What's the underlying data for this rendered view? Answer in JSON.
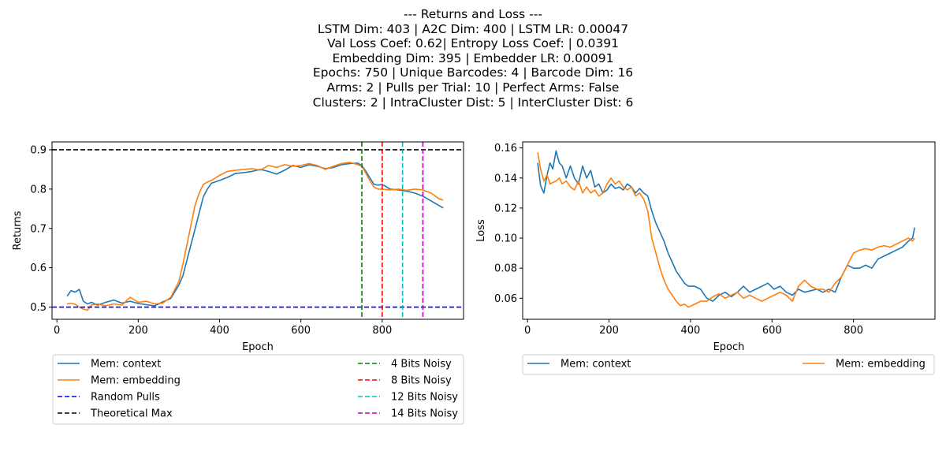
{
  "suptitle_lines": [
    "--- Returns and Loss ---",
    "LSTM Dim: 403 | A2C Dim: 400 | LSTM LR: 0.00047",
    "Val Loss Coef: 0.62| Entropy Loss Coef: | 0.0391",
    "Embedding Dim: 395 | Embedder LR: 0.00091",
    "Epochs: 750 | Unique Barcodes: 4 | Barcode Dim: 16",
    "Arms: 2 | Pulls per Trial: 10 | Perfect Arms: False",
    "Clusters: 2 | IntraCluster Dist: 5 | InterCluster Dist: 6"
  ],
  "chart_data": [
    {
      "type": "line",
      "xlabel": "Epoch",
      "ylabel": "Returns",
      "xlim": [
        -12,
        1000
      ],
      "ylim": [
        0.469,
        0.92
      ],
      "xticks": [
        0,
        200,
        400,
        600,
        800
      ],
      "yticks": [
        0.5,
        0.6,
        0.7,
        0.8,
        0.9
      ],
      "series": [
        {
          "name": "Mem: context",
          "color": "#1f77b4",
          "x": [
            25,
            35,
            45,
            55,
            65,
            75,
            85,
            100,
            120,
            140,
            160,
            180,
            200,
            220,
            240,
            260,
            280,
            300,
            310,
            320,
            330,
            340,
            350,
            360,
            370,
            380,
            400,
            420,
            440,
            460,
            480,
            500,
            520,
            540,
            560,
            580,
            600,
            620,
            640,
            660,
            680,
            700,
            720,
            740,
            750,
            760,
            770,
            780,
            790,
            800,
            820,
            840,
            860,
            880,
            900,
            920,
            940,
            950
          ],
          "y": [
            0.528,
            0.542,
            0.538,
            0.545,
            0.515,
            0.508,
            0.512,
            0.505,
            0.512,
            0.518,
            0.51,
            0.515,
            0.509,
            0.506,
            0.503,
            0.513,
            0.522,
            0.556,
            0.58,
            0.62,
            0.66,
            0.7,
            0.74,
            0.78,
            0.8,
            0.815,
            0.822,
            0.83,
            0.84,
            0.842,
            0.845,
            0.85,
            0.845,
            0.838,
            0.848,
            0.86,
            0.855,
            0.862,
            0.858,
            0.852,
            0.855,
            0.862,
            0.865,
            0.866,
            0.86,
            0.845,
            0.828,
            0.812,
            0.81,
            0.812,
            0.8,
            0.798,
            0.795,
            0.79,
            0.782,
            0.77,
            0.758,
            0.752
          ]
        },
        {
          "name": "Mem: embedding",
          "color": "#ff7f0e",
          "x": [
            25,
            35,
            45,
            55,
            65,
            75,
            85,
            100,
            120,
            140,
            160,
            180,
            200,
            220,
            240,
            260,
            280,
            300,
            310,
            320,
            330,
            340,
            350,
            360,
            370,
            380,
            400,
            420,
            440,
            460,
            480,
            500,
            520,
            540,
            560,
            580,
            600,
            620,
            640,
            660,
            680,
            700,
            720,
            740,
            750,
            760,
            770,
            780,
            790,
            800,
            820,
            840,
            860,
            880,
            900,
            920,
            940,
            950
          ],
          "y": [
            0.508,
            0.51,
            0.507,
            0.5,
            0.495,
            0.492,
            0.505,
            0.508,
            0.503,
            0.508,
            0.505,
            0.525,
            0.512,
            0.515,
            0.508,
            0.51,
            0.525,
            0.565,
            0.61,
            0.66,
            0.71,
            0.76,
            0.79,
            0.812,
            0.818,
            0.822,
            0.835,
            0.845,
            0.848,
            0.85,
            0.852,
            0.848,
            0.86,
            0.855,
            0.862,
            0.858,
            0.86,
            0.865,
            0.86,
            0.85,
            0.858,
            0.865,
            0.868,
            0.862,
            0.858,
            0.84,
            0.82,
            0.805,
            0.8,
            0.8,
            0.798,
            0.8,
            0.797,
            0.8,
            0.798,
            0.79,
            0.775,
            0.772
          ]
        }
      ],
      "hlines": [
        {
          "name": "Random Pulls",
          "y": 0.5,
          "color": "#0000ff"
        },
        {
          "name": "Theoretical Max",
          "y": 0.9,
          "color": "#000000"
        }
      ],
      "vlines": [
        {
          "name": "4 Bits Noisy",
          "x": 750,
          "color": "#008000"
        },
        {
          "name": "8 Bits Noisy",
          "x": 800,
          "color": "#ff0000"
        },
        {
          "name": "12 Bits Noisy",
          "x": 850,
          "color": "#00bfbf"
        },
        {
          "name": "14 Bits Noisy",
          "x": 900,
          "color": "#bf00bf"
        }
      ],
      "legend_placement": "below"
    },
    {
      "type": "line",
      "xlabel": "Epoch",
      "ylabel": "Loss",
      "xlim": [
        -12,
        1000
      ],
      "ylim": [
        0.046,
        0.164
      ],
      "xticks": [
        0,
        200,
        400,
        600,
        800
      ],
      "yticks": [
        0.06,
        0.08,
        0.1,
        0.12,
        0.14,
        0.16
      ],
      "yticklabels": [
        "0.06",
        "0.08",
        "0.10",
        "0.12",
        "0.14",
        "0.16"
      ],
      "series": [
        {
          "name": "Mem: context",
          "color": "#1f77b4",
          "x": [
            25,
            32,
            40,
            48,
            55,
            62,
            70,
            78,
            85,
            95,
            105,
            115,
            125,
            135,
            145,
            155,
            165,
            175,
            185,
            195,
            205,
            215,
            225,
            235,
            245,
            255,
            265,
            275,
            285,
            295,
            305,
            315,
            325,
            335,
            345,
            355,
            365,
            375,
            385,
            395,
            410,
            425,
            440,
            455,
            470,
            485,
            500,
            515,
            530,
            545,
            560,
            575,
            590,
            605,
            620,
            635,
            650,
            665,
            680,
            695,
            710,
            725,
            740,
            755,
            770,
            785,
            800,
            815,
            830,
            845,
            860,
            875,
            890,
            905,
            920,
            935,
            945,
            950
          ],
          "y": [
            0.15,
            0.135,
            0.13,
            0.142,
            0.15,
            0.146,
            0.158,
            0.15,
            0.148,
            0.14,
            0.148,
            0.14,
            0.136,
            0.148,
            0.14,
            0.145,
            0.134,
            0.136,
            0.13,
            0.132,
            0.136,
            0.133,
            0.134,
            0.132,
            0.136,
            0.134,
            0.13,
            0.133,
            0.13,
            0.128,
            0.118,
            0.11,
            0.104,
            0.098,
            0.09,
            0.084,
            0.078,
            0.074,
            0.07,
            0.068,
            0.068,
            0.066,
            0.06,
            0.058,
            0.062,
            0.064,
            0.061,
            0.064,
            0.068,
            0.064,
            0.066,
            0.068,
            0.07,
            0.066,
            0.068,
            0.064,
            0.062,
            0.066,
            0.064,
            0.065,
            0.066,
            0.064,
            0.066,
            0.064,
            0.074,
            0.082,
            0.08,
            0.08,
            0.082,
            0.08,
            0.086,
            0.088,
            0.09,
            0.092,
            0.094,
            0.098,
            0.1,
            0.107
          ]
        },
        {
          "name": "Mem: embedding",
          "color": "#ff7f0e",
          "x": [
            25,
            32,
            40,
            48,
            55,
            62,
            70,
            78,
            85,
            95,
            105,
            115,
            125,
            135,
            145,
            155,
            165,
            175,
            185,
            195,
            205,
            215,
            225,
            235,
            245,
            255,
            265,
            275,
            285,
            295,
            305,
            315,
            325,
            335,
            345,
            355,
            365,
            375,
            385,
            395,
            410,
            425,
            440,
            455,
            470,
            485,
            500,
            515,
            530,
            545,
            560,
            575,
            590,
            605,
            620,
            635,
            650,
            665,
            680,
            695,
            710,
            725,
            740,
            755,
            770,
            785,
            800,
            815,
            830,
            845,
            860,
            875,
            890,
            905,
            920,
            935,
            945,
            950
          ],
          "y": [
            0.157,
            0.146,
            0.138,
            0.142,
            0.136,
            0.137,
            0.138,
            0.14,
            0.136,
            0.138,
            0.134,
            0.132,
            0.138,
            0.13,
            0.134,
            0.13,
            0.132,
            0.128,
            0.13,
            0.136,
            0.14,
            0.136,
            0.138,
            0.134,
            0.132,
            0.134,
            0.128,
            0.13,
            0.126,
            0.118,
            0.1,
            0.09,
            0.08,
            0.072,
            0.066,
            0.062,
            0.058,
            0.055,
            0.056,
            0.054,
            0.056,
            0.058,
            0.058,
            0.061,
            0.063,
            0.06,
            0.062,
            0.064,
            0.06,
            0.062,
            0.06,
            0.058,
            0.06,
            0.062,
            0.064,
            0.062,
            0.058,
            0.068,
            0.072,
            0.068,
            0.066,
            0.066,
            0.064,
            0.07,
            0.074,
            0.082,
            0.09,
            0.092,
            0.093,
            0.092,
            0.094,
            0.095,
            0.094,
            0.096,
            0.098,
            0.1,
            0.098,
            0.1
          ]
        }
      ],
      "legend_placement": "below"
    }
  ]
}
